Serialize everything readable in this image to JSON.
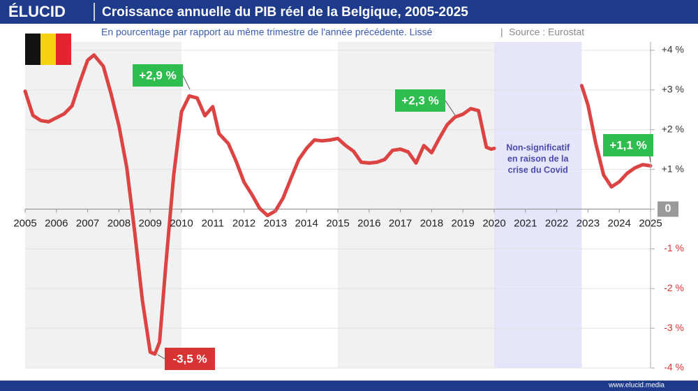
{
  "logo": "ÉLUCID",
  "footer": "www.elucid.media",
  "chart_data": {
    "type": "line",
    "title": "Croissance annuelle du PIB réel de la Belgique, 2005-2025",
    "subtitle": "En pourcentage par rapport au même trimestre de l'année précédente. Lissé",
    "source": "Source : Eurostat",
    "color": "#dc4343",
    "x": [
      2005,
      2005.25,
      2005.5,
      2005.75,
      2006,
      2006.25,
      2006.5,
      2006.75,
      2007,
      2007.2,
      2007.5,
      2007.75,
      2008,
      2008.25,
      2008.5,
      2008.75,
      2009,
      2009.15,
      2009.3,
      2009.5,
      2009.75,
      2010,
      2010.25,
      2010.5,
      2010.75,
      2011,
      2011.2,
      2011.5,
      2011.75,
      2012,
      2012.25,
      2012.5,
      2012.75,
      2013,
      2013.25,
      2013.5,
      2013.75,
      2014,
      2014.25,
      2014.5,
      2014.75,
      2015,
      2015.25,
      2015.5,
      2015.75,
      2016,
      2016.25,
      2016.5,
      2016.75,
      2017,
      2017.25,
      2017.5,
      2017.75,
      2018,
      2018.25,
      2018.5,
      2018.75,
      2019,
      2019.25,
      2019.5,
      2019.75,
      2019.9,
      2020,
      2021,
      2022.8,
      2023,
      2023.25,
      2023.5,
      2023.75,
      2024,
      2024.25,
      2024.5,
      2024.75,
      2025
    ],
    "values": [
      2.97,
      2.36,
      2.23,
      2.2,
      2.3,
      2.4,
      2.6,
      3.2,
      3.75,
      3.88,
      3.6,
      2.9,
      2.1,
      1.05,
      -0.55,
      -2.3,
      -3.6,
      -3.65,
      -3.35,
      -1.4,
      0.85,
      2.45,
      2.85,
      2.8,
      2.35,
      2.58,
      1.9,
      1.65,
      1.2,
      0.68,
      0.37,
      0.02,
      -0.16,
      -0.05,
      0.28,
      0.77,
      1.25,
      1.53,
      1.74,
      1.72,
      1.74,
      1.78,
      1.6,
      1.46,
      1.18,
      1.16,
      1.18,
      1.25,
      1.48,
      1.51,
      1.44,
      1.16,
      1.6,
      1.42,
      1.79,
      2.13,
      2.32,
      2.39,
      2.53,
      2.48,
      1.56,
      1.51,
      1.53,
      null,
      3.11,
      2.62,
      1.65,
      0.86,
      0.56,
      0.69,
      0.9,
      1.04,
      1.12,
      1.09
    ],
    "xlim": [
      2005,
      2025
    ],
    "xticks": [
      2005,
      2006,
      2007,
      2008,
      2009,
      2010,
      2011,
      2012,
      2013,
      2014,
      2015,
      2016,
      2017,
      2018,
      2019,
      2020,
      2021,
      2022,
      2023,
      2024,
      2025
    ],
    "ylim": [
      -4,
      4
    ],
    "yticks": [
      {
        "value": 4,
        "label": "+4 %"
      },
      {
        "value": 3,
        "label": "+3 %"
      },
      {
        "value": 2,
        "label": "+2 %"
      },
      {
        "value": 1,
        "label": "+1 %"
      },
      0,
      {
        "value": -1,
        "label": "-1 %"
      },
      {
        "value": -2,
        "label": "-2 %"
      },
      {
        "value": -3,
        "label": "-3 %"
      },
      {
        "value": -4,
        "label": "-4 %"
      }
    ],
    "grid": true,
    "bands": [
      {
        "x": [
          2005,
          2010
        ],
        "color": "#f1f1f1"
      },
      {
        "x": [
          2015,
          2020
        ],
        "color": "#f1f1f1"
      },
      {
        "x": [
          2020,
          2022.8
        ],
        "color": "#e5e6fa"
      }
    ],
    "covid_note": [
      "Non-significatif",
      "en raison de la",
      "crise du Covid"
    ],
    "annotations": [
      {
        "text": "+2,9 %",
        "color": "#2ebd4e"
      },
      {
        "text": "+2,3 %",
        "color": "#2ebd4e"
      },
      {
        "text": "+1,1 %",
        "color": "#2ebd4e"
      },
      {
        "text": "-3,5 %",
        "color": "#d93434"
      }
    ]
  }
}
